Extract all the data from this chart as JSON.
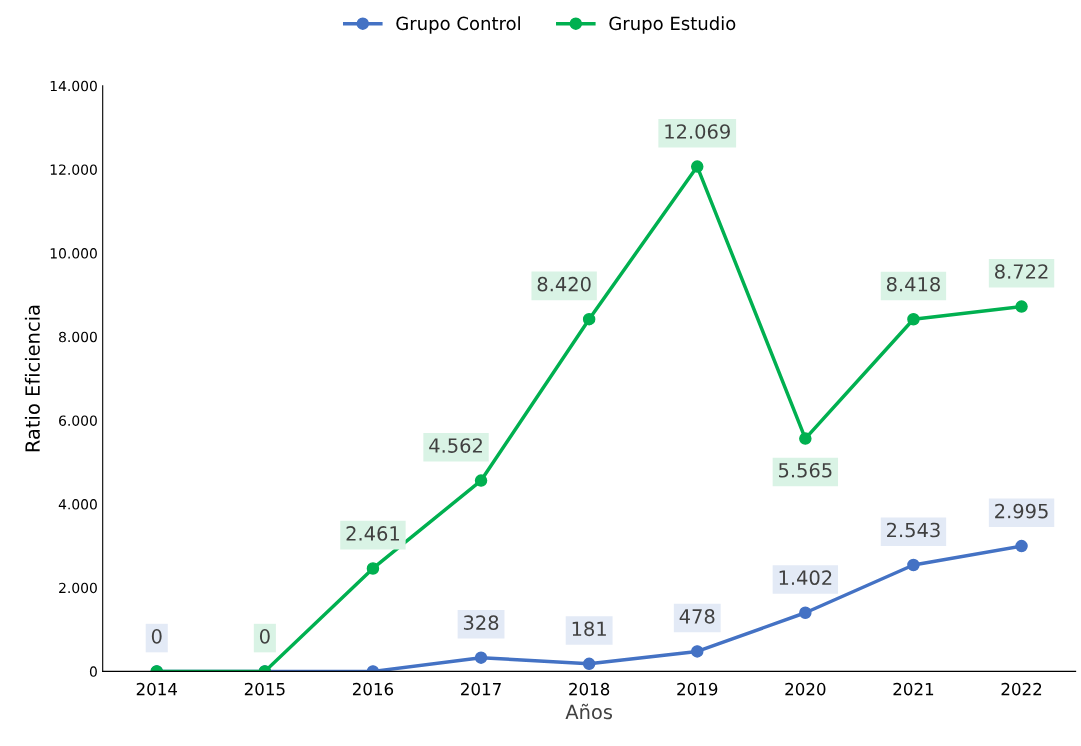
{
  "chart_data": {
    "type": "line",
    "xlabel": "Años",
    "ylabel": "Ratio Eficiencia",
    "categories": [
      "2014",
      "2015",
      "2016",
      "2017",
      "2018",
      "2019",
      "2020",
      "2021",
      "2022"
    ],
    "series": [
      {
        "name": "Grupo Control",
        "color": "#4472c4",
        "values": [
          0,
          0,
          0,
          328,
          181,
          478,
          1402,
          2543,
          2995
        ],
        "value_labels": [
          "0",
          null,
          null,
          "328",
          "181",
          "478",
          "1.402",
          "2.543",
          "2.995"
        ]
      },
      {
        "name": "Grupo Estudio",
        "color": "#00b050",
        "values": [
          0,
          0,
          2461,
          4562,
          8420,
          12069,
          5565,
          8418,
          8722
        ],
        "value_labels": [
          null,
          "0",
          "2.461",
          "4.562",
          "8.420",
          "12.069",
          "5.565",
          "8.418",
          "8.722"
        ]
      }
    ],
    "ylim": [
      0,
      14000
    ],
    "yticks": [
      {
        "value": 0,
        "label": "0"
      },
      {
        "value": 2000,
        "label": "2.000"
      },
      {
        "value": 4000,
        "label": "4.000"
      },
      {
        "value": 6000,
        "label": "6.000"
      },
      {
        "value": 8000,
        "label": "8.000"
      },
      {
        "value": 10000,
        "label": "10.000"
      },
      {
        "value": 12000,
        "label": "12.000"
      },
      {
        "value": 14000,
        "label": "14.000"
      }
    ],
    "grid": false,
    "legend": "top",
    "marker": "circle",
    "line_style": "solid"
  }
}
